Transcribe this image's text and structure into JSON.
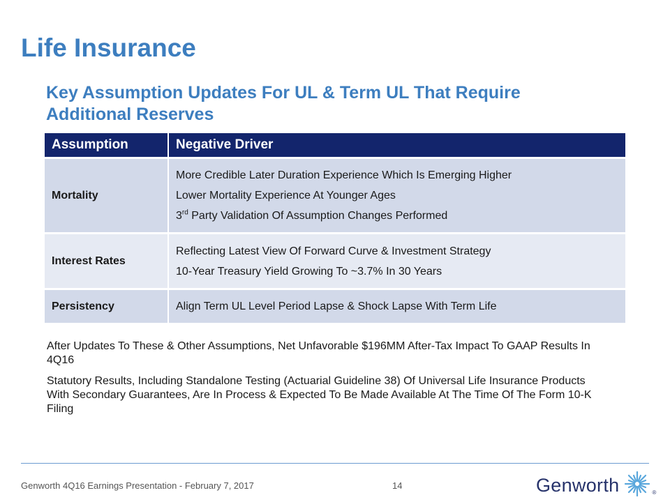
{
  "slide": {
    "title": "Life Insurance",
    "subtitle": "Key Assumption Updates For UL & Term UL That Require Additional Reserves"
  },
  "table": {
    "headers": [
      "Assumption",
      "Negative Driver"
    ],
    "rows": [
      {
        "assumption": "Mortality",
        "drivers": [
          "More Credible Later Duration Experience Which Is Emerging Higher",
          "Lower Mortality Experience At Younger Ages",
          {
            "prefix": "3",
            "sup": "rd",
            "rest": " Party Validation Of Assumption Changes Performed"
          }
        ]
      },
      {
        "assumption": "Interest Rates",
        "drivers": [
          "Reflecting Latest View Of Forward Curve & Investment Strategy",
          "10-Year Treasury Yield Growing To ~3.7% In 30 Years"
        ]
      },
      {
        "assumption": "Persistency",
        "drivers": [
          "Align Term UL Level Period Lapse & Shock Lapse With Term Life"
        ]
      }
    ]
  },
  "bullets": [
    "After Updates To These & Other Assumptions, Net Unfavorable $196MM After-Tax Impact To GAAP Results In 4Q16",
    "Statutory Results, Including Standalone Testing (Actuarial Guideline 38) Of Universal Life Insurance Products With Secondary Guarantees, Are In Process & Expected To Be Made Available At The Time Of The Form 10-K Filing"
  ],
  "footer": {
    "text": "Genworth 4Q16 Earnings Presentation - February 7, 2017",
    "page_number": "14",
    "logo_text": "Genworth",
    "logo_reg": "®",
    "logo_icon": "genworth-starburst-icon"
  },
  "colors": {
    "title": "#3d7ebf",
    "table_header": "#13256c",
    "row_dark": "#d2d9e9",
    "row_light": "#e6eaf3",
    "logo": "#27336b",
    "logo_mark": "#5aa7dc",
    "footer_rule": "#6c9bd1"
  }
}
